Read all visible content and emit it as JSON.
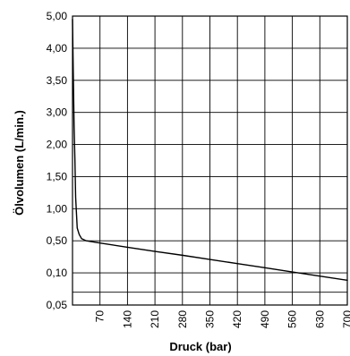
{
  "chart_data": {
    "type": "line",
    "title": "",
    "xlabel": "Druck (bar)",
    "ylabel": "Ölvolumen (L/min.)",
    "grid": true,
    "legend": "none",
    "x_tick_labels": [
      "70",
      "140",
      "210",
      "280",
      "350",
      "420",
      "490",
      "560",
      "630",
      "700"
    ],
    "y_tick_labels": [
      "0,05",
      "0,10",
      "0,50",
      "1,00",
      "1,50",
      "2,00",
      "3,00",
      "3,50",
      "4,00",
      "5,00"
    ],
    "xlim": [
      0,
      700
    ],
    "series": [
      {
        "x": [
          0,
          2,
          4,
          6,
          8,
          12,
          17,
          23,
          35,
          70,
          140,
          210,
          280,
          350,
          420,
          490,
          560,
          630,
          700
        ],
        "y": [
          "4,00+",
          "3,00",
          "2,00",
          "1,50",
          "1,00",
          "0,60",
          "0,53",
          "0,50",
          "0,48",
          "0,46",
          "0,42",
          "0,38",
          "0,35",
          "0,32",
          "0,28",
          "0,25",
          "0,22",
          "0,19",
          "0,16"
        ],
        "y_position_index": [
          8.9,
          7.2,
          5.6,
          4.6,
          3.35,
          2.4,
          2.2,
          2.07,
          2.0,
          1.93,
          1.8,
          1.67,
          1.55,
          1.42,
          1.29,
          1.16,
          1.03,
          0.9,
          0.77
        ]
      }
    ]
  }
}
